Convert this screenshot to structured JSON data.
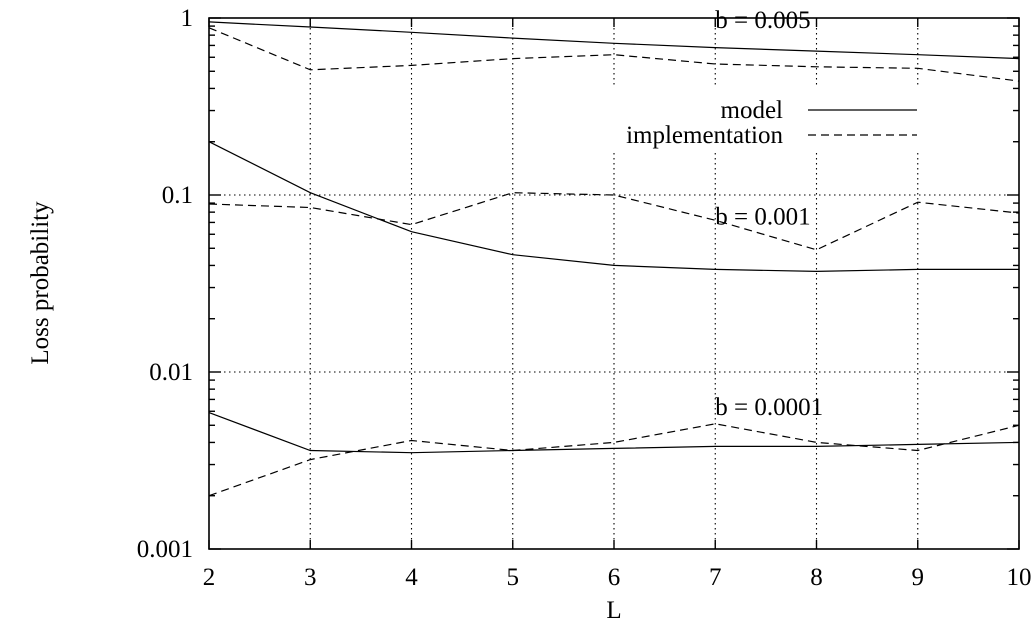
{
  "chart_data": {
    "type": "line",
    "xlabel": "L",
    "ylabel": "Loss probability",
    "xlim": [
      2,
      10
    ],
    "ylim": [
      0.001,
      1
    ],
    "yscale": "log",
    "grid": true,
    "x_ticks": [
      "2",
      "3",
      "4",
      "5",
      "6",
      "7",
      "8",
      "9",
      "10"
    ],
    "y_ticks": [
      {
        "value": 0.001,
        "label": "0.001"
      },
      {
        "value": 0.01,
        "label": "0.01"
      },
      {
        "value": 0.1,
        "label": "0.1"
      },
      {
        "value": 1,
        "label": "1"
      }
    ],
    "legend": {
      "placement": "top-right",
      "entries": [
        {
          "label": "model",
          "style": "solid"
        },
        {
          "label": "implementation",
          "style": "dashed"
        }
      ]
    },
    "annotations": [
      {
        "text": "b = 0.005",
        "x": 7.0,
        "y": 0.88
      },
      {
        "text": "b = 0.001",
        "x": 7.0,
        "y": 0.068
      },
      {
        "text": "b = 0.0001",
        "x": 7.0,
        "y": 0.0057
      }
    ],
    "x": [
      2,
      3,
      4,
      5,
      6,
      7,
      8,
      9,
      10
    ],
    "series": [
      {
        "group": "b = 0.005",
        "style": "solid",
        "values": [
          0.95,
          0.89,
          0.83,
          0.77,
          0.72,
          0.68,
          0.65,
          0.62,
          0.59
        ]
      },
      {
        "group": "b = 0.005",
        "style": "dashed",
        "values": [
          0.88,
          0.51,
          0.54,
          0.59,
          0.62,
          0.55,
          0.53,
          0.52,
          0.44
        ]
      },
      {
        "group": "b = 0.001",
        "style": "solid",
        "values": [
          0.2,
          0.103,
          0.062,
          0.046,
          0.04,
          0.038,
          0.037,
          0.038,
          0.038
        ]
      },
      {
        "group": "b = 0.001",
        "style": "dashed",
        "values": [
          0.089,
          0.085,
          0.068,
          0.103,
          0.1,
          0.072,
          0.049,
          0.091,
          0.079
        ]
      },
      {
        "group": "b = 0.0001",
        "style": "solid",
        "values": [
          0.0059,
          0.0036,
          0.0035,
          0.0036,
          0.0037,
          0.0038,
          0.0038,
          0.0039,
          0.004
        ]
      },
      {
        "group": "b = 0.0001",
        "style": "dashed",
        "values": [
          0.002,
          0.0032,
          0.0041,
          0.0036,
          0.004,
          0.0051,
          0.004,
          0.0036,
          0.005
        ]
      }
    ]
  }
}
